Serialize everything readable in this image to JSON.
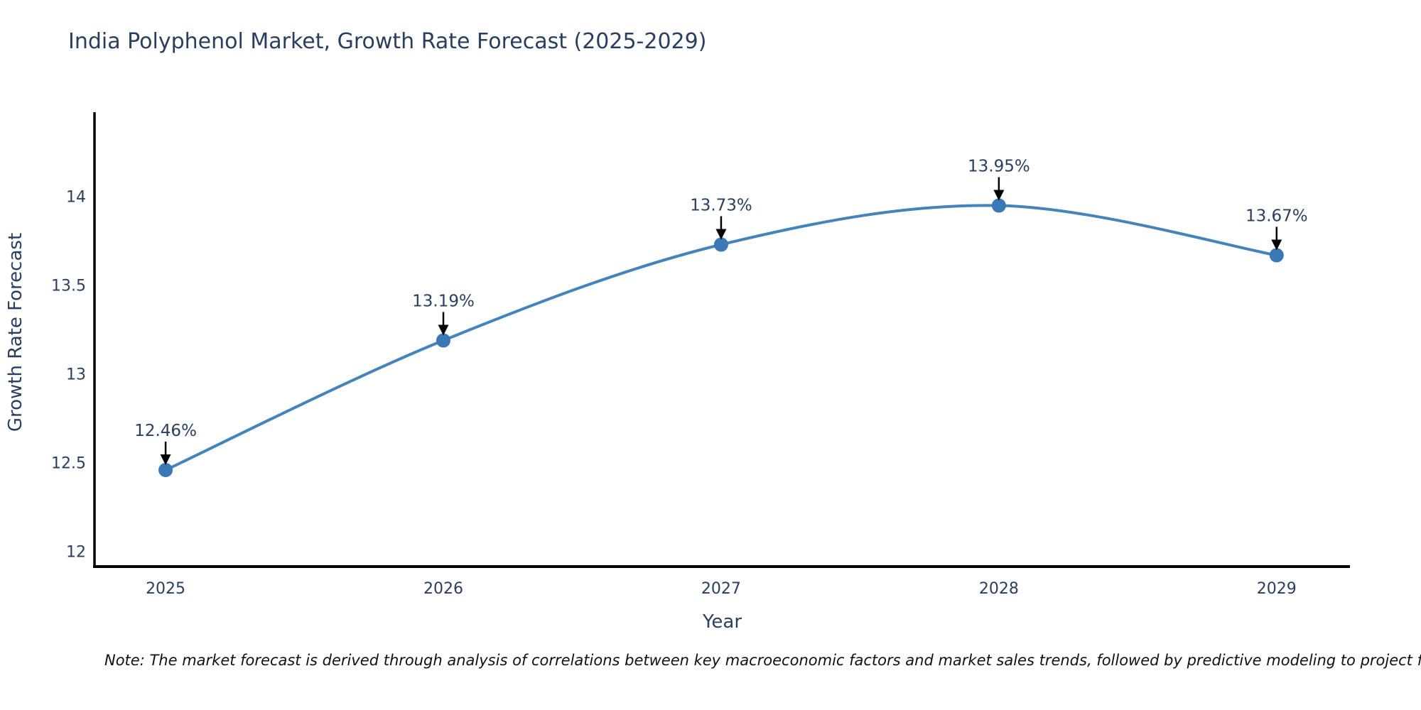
{
  "title": "India Polyphenol Market, Growth Rate Forecast (2025-2029)",
  "note": "Note: The market forecast is derived through analysis of correlations between key macroeconomic factors and market sales trends, followed by predictive modeling to project future sales.",
  "chart_data": {
    "type": "line",
    "title": "India Polyphenol Market, Growth Rate Forecast (2025-2029)",
    "xlabel": "Year",
    "ylabel": "Growth Rate Forecast",
    "x": [
      2025,
      2026,
      2027,
      2028,
      2029
    ],
    "series": [
      {
        "name": "Growth Rate Forecast",
        "values": [
          12.46,
          13.19,
          13.73,
          13.95,
          13.67
        ]
      }
    ],
    "point_labels": [
      "12.46%",
      "13.19%",
      "13.73%",
      "13.95%",
      "13.67%"
    ],
    "xticks": [
      2025,
      2026,
      2027,
      2028,
      2029
    ],
    "yticks": [
      12,
      12.5,
      13,
      13.5,
      14
    ],
    "xlim": [
      2024.744,
      2029.264
    ],
    "ylim": [
      11.916,
      14.476
    ],
    "grid": false,
    "legend": "none",
    "line_shape": "spline",
    "annotation_style": "down-arrow",
    "colors": {
      "line": "#4484bb",
      "marker": "#3a79b5",
      "arrow": "#000000",
      "text": "#2a3f5f",
      "axis": "#000000",
      "note_text": "#111111"
    }
  }
}
